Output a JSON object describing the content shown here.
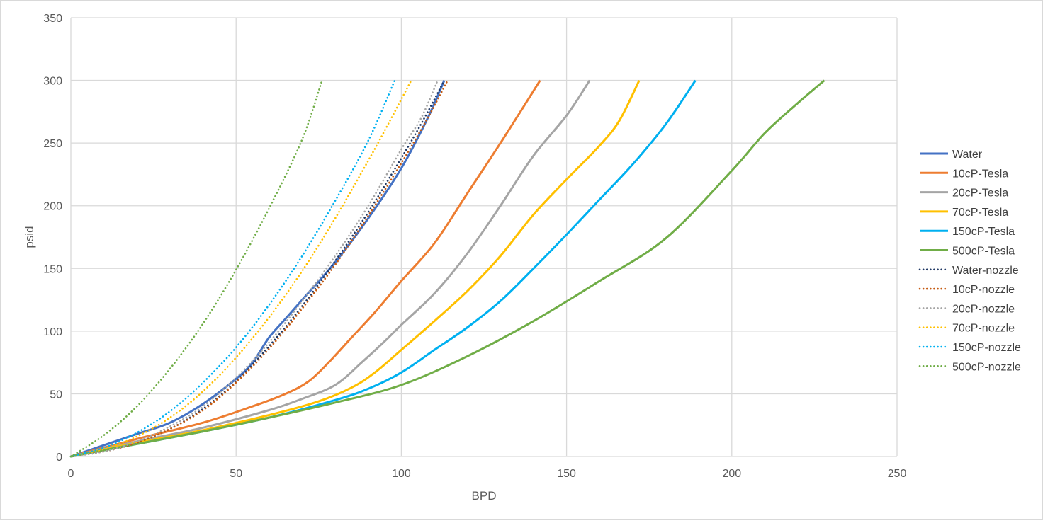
{
  "chart_data": {
    "type": "line",
    "title": "",
    "xlabel": "BPD",
    "ylabel": "psid",
    "xlim": [
      0,
      250
    ],
    "ylim": [
      0,
      350
    ],
    "xticks": [
      0,
      50,
      100,
      150,
      200,
      250
    ],
    "yticks": [
      0,
      50,
      100,
      150,
      200,
      250,
      300,
      350
    ],
    "grid": true,
    "legend_position": "right",
    "series": [
      {
        "name": "Water",
        "color": "#4472C4",
        "style": "solid",
        "points": [
          [
            0,
            0
          ],
          [
            10,
            9
          ],
          [
            20,
            18
          ],
          [
            30,
            27
          ],
          [
            40,
            42
          ],
          [
            50,
            62
          ],
          [
            55,
            75
          ],
          [
            60,
            95
          ],
          [
            65,
            110
          ],
          [
            70,
            125
          ],
          [
            80,
            155
          ],
          [
            90,
            190
          ],
          [
            100,
            230
          ],
          [
            108,
            270
          ],
          [
            113,
            300
          ]
        ]
      },
      {
        "name": "10cP-Tesla",
        "color": "#ED7D31",
        "style": "solid",
        "points": [
          [
            0,
            0
          ],
          [
            20,
            14
          ],
          [
            40,
            27
          ],
          [
            55,
            40
          ],
          [
            65,
            50
          ],
          [
            72,
            60
          ],
          [
            78,
            75
          ],
          [
            85,
            95
          ],
          [
            92,
            115
          ],
          [
            100,
            140
          ],
          [
            110,
            170
          ],
          [
            120,
            210
          ],
          [
            130,
            250
          ],
          [
            142,
            300
          ]
        ]
      },
      {
        "name": "20cP-Tesla",
        "color": "#A5A5A5",
        "style": "solid",
        "points": [
          [
            0,
            0
          ],
          [
            20,
            12
          ],
          [
            40,
            23
          ],
          [
            60,
            37
          ],
          [
            70,
            46
          ],
          [
            80,
            57
          ],
          [
            88,
            75
          ],
          [
            95,
            92
          ],
          [
            100,
            105
          ],
          [
            110,
            130
          ],
          [
            120,
            162
          ],
          [
            130,
            200
          ],
          [
            140,
            240
          ],
          [
            150,
            272
          ],
          [
            157,
            300
          ]
        ]
      },
      {
        "name": "70cP-Tesla",
        "color": "#FFC000",
        "style": "solid",
        "points": [
          [
            0,
            0
          ],
          [
            20,
            11
          ],
          [
            40,
            21
          ],
          [
            60,
            33
          ],
          [
            75,
            44
          ],
          [
            85,
            55
          ],
          [
            92,
            67
          ],
          [
            100,
            85
          ],
          [
            110,
            108
          ],
          [
            120,
            132
          ],
          [
            130,
            160
          ],
          [
            140,
            193
          ],
          [
            150,
            221
          ],
          [
            160,
            248
          ],
          [
            166,
            268
          ],
          [
            172,
            300
          ]
        ]
      },
      {
        "name": "150cP-Tesla",
        "color": "#00B0F0",
        "style": "solid",
        "points": [
          [
            0,
            0
          ],
          [
            20,
            10
          ],
          [
            40,
            20
          ],
          [
            60,
            31
          ],
          [
            80,
            45
          ],
          [
            90,
            54
          ],
          [
            100,
            67
          ],
          [
            110,
            85
          ],
          [
            120,
            103
          ],
          [
            130,
            124
          ],
          [
            140,
            150
          ],
          [
            150,
            177
          ],
          [
            160,
            205
          ],
          [
            170,
            233
          ],
          [
            180,
            265
          ],
          [
            189,
            300
          ]
        ]
      },
      {
        "name": "500cP-Tesla",
        "color": "#70AD47",
        "style": "solid",
        "points": [
          [
            0,
            0
          ],
          [
            20,
            10
          ],
          [
            40,
            20
          ],
          [
            60,
            31
          ],
          [
            80,
            43
          ],
          [
            100,
            57
          ],
          [
            120,
            80
          ],
          [
            140,
            108
          ],
          [
            160,
            140
          ],
          [
            180,
            174
          ],
          [
            200,
            228
          ],
          [
            210,
            258
          ],
          [
            220,
            282
          ],
          [
            228,
            300
          ]
        ]
      },
      {
        "name": "Water-nozzle",
        "color": "#203864",
        "style": "dotted",
        "points": [
          [
            0,
            0
          ],
          [
            10,
            4
          ],
          [
            20,
            11
          ],
          [
            30,
            22
          ],
          [
            40,
            38
          ],
          [
            50,
            60
          ],
          [
            60,
            88
          ],
          [
            70,
            120
          ],
          [
            80,
            156
          ],
          [
            90,
            195
          ],
          [
            100,
            238
          ],
          [
            107,
            270
          ],
          [
            113,
            300
          ]
        ]
      },
      {
        "name": "10cP-nozzle",
        "color": "#C55A11",
        "style": "dotted",
        "points": [
          [
            0,
            0
          ],
          [
            10,
            4
          ],
          [
            20,
            11
          ],
          [
            30,
            22
          ],
          [
            40,
            37
          ],
          [
            50,
            59
          ],
          [
            60,
            86
          ],
          [
            70,
            118
          ],
          [
            80,
            153
          ],
          [
            90,
            192
          ],
          [
            100,
            234
          ],
          [
            108,
            270
          ],
          [
            114,
            300
          ]
        ]
      },
      {
        "name": "20cP-nozzle",
        "color": "#A5A5A5",
        "style": "dotted",
        "points": [
          [
            0,
            0
          ],
          [
            10,
            4
          ],
          [
            20,
            12
          ],
          [
            30,
            24
          ],
          [
            40,
            40
          ],
          [
            50,
            63
          ],
          [
            60,
            91
          ],
          [
            70,
            124
          ],
          [
            80,
            160
          ],
          [
            90,
            200
          ],
          [
            100,
            245
          ],
          [
            106,
            270
          ],
          [
            111,
            300
          ]
        ]
      },
      {
        "name": "70cP-nozzle",
        "color": "#FFC000",
        "style": "dotted",
        "points": [
          [
            0,
            0
          ],
          [
            10,
            6
          ],
          [
            20,
            16
          ],
          [
            30,
            31
          ],
          [
            40,
            52
          ],
          [
            50,
            79
          ],
          [
            60,
            111
          ],
          [
            70,
            148
          ],
          [
            80,
            190
          ],
          [
            90,
            236
          ],
          [
            96,
            265
          ],
          [
            103,
            300
          ]
        ]
      },
      {
        "name": "150cP-nozzle",
        "color": "#00B0F0",
        "style": "dotted",
        "points": [
          [
            0,
            0
          ],
          [
            10,
            7
          ],
          [
            20,
            19
          ],
          [
            30,
            36
          ],
          [
            40,
            59
          ],
          [
            50,
            87
          ],
          [
            60,
            121
          ],
          [
            70,
            160
          ],
          [
            80,
            204
          ],
          [
            90,
            252
          ],
          [
            98,
            300
          ]
        ]
      },
      {
        "name": "500cP-nozzle",
        "color": "#70AD47",
        "style": "dotted",
        "points": [
          [
            0,
            0
          ],
          [
            10,
            17
          ],
          [
            20,
            40
          ],
          [
            30,
            70
          ],
          [
            40,
            106
          ],
          [
            50,
            149
          ],
          [
            60,
            198
          ],
          [
            70,
            253
          ],
          [
            76,
            300
          ]
        ]
      }
    ]
  }
}
